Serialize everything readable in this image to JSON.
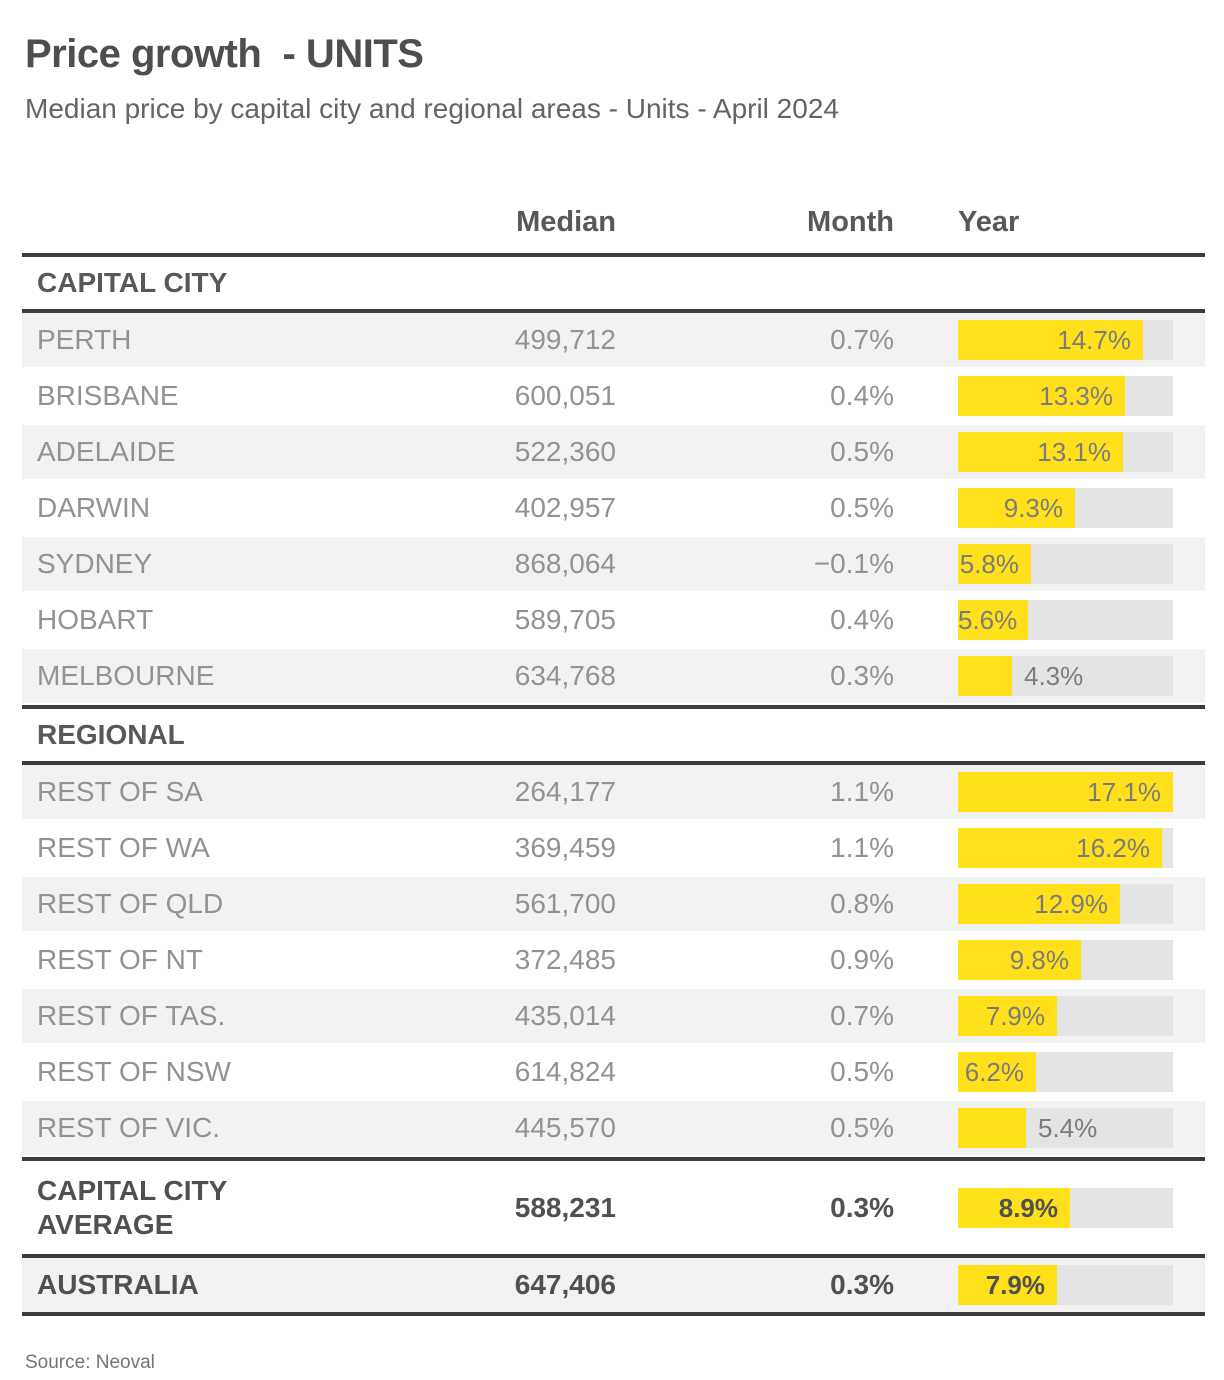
{
  "header": {
    "title": "Price growth  - UNITS",
    "subtitle": "Median price by capital city and regional areas - Units - April 2024"
  },
  "columns": {
    "median": "Median",
    "month": "Month",
    "year": "Year"
  },
  "sections": [
    {
      "label": "CAPITAL CITY",
      "rows": [
        {
          "name": "PERTH",
          "median": "499,712",
          "month": "0.7%",
          "year": 14.7,
          "year_label": "14.7%"
        },
        {
          "name": "BRISBANE",
          "median": "600,051",
          "month": "0.4%",
          "year": 13.3,
          "year_label": "13.3%"
        },
        {
          "name": "ADELAIDE",
          "median": "522,360",
          "month": "0.5%",
          "year": 13.1,
          "year_label": "13.1%"
        },
        {
          "name": "DARWIN",
          "median": "402,957",
          "month": "0.5%",
          "year": 9.3,
          "year_label": "9.3%"
        },
        {
          "name": "SYDNEY",
          "median": "868,064",
          "month": "−0.1%",
          "year": 5.8,
          "year_label": "5.8%"
        },
        {
          "name": "HOBART",
          "median": "589,705",
          "month": "0.4%",
          "year": 5.6,
          "year_label": "5.6%"
        },
        {
          "name": "MELBOURNE",
          "median": "634,768",
          "month": "0.3%",
          "year": 4.3,
          "year_label": "4.3%"
        }
      ]
    },
    {
      "label": "REGIONAL",
      "rows": [
        {
          "name": "REST OF SA",
          "median": "264,177",
          "month": "1.1%",
          "year": 17.1,
          "year_label": "17.1%"
        },
        {
          "name": "REST OF WA",
          "median": "369,459",
          "month": "1.1%",
          "year": 16.2,
          "year_label": "16.2%"
        },
        {
          "name": "REST OF QLD",
          "median": "561,700",
          "month": "0.8%",
          "year": 12.9,
          "year_label": "12.9%"
        },
        {
          "name": "REST OF NT",
          "median": "372,485",
          "month": "0.9%",
          "year": 9.8,
          "year_label": "9.8%"
        },
        {
          "name": "REST OF TAS.",
          "median": "435,014",
          "month": "0.7%",
          "year": 7.9,
          "year_label": "7.9%"
        },
        {
          "name": "REST OF NSW",
          "median": "614,824",
          "month": "0.5%",
          "year": 6.2,
          "year_label": "6.2%"
        },
        {
          "name": "REST OF VIC.",
          "median": "445,570",
          "month": "0.5%",
          "year": 5.4,
          "year_label": "5.4%"
        }
      ]
    }
  ],
  "summary_rows": [
    {
      "name": "CAPITAL CITY\nAVERAGE",
      "median": "588,231",
      "month": "0.3%",
      "year": 8.9,
      "year_label": "8.9%"
    },
    {
      "name": "AUSTRALIA",
      "median": "647,406",
      "month": "0.3%",
      "year": 7.9,
      "year_label": "7.9%"
    }
  ],
  "footer": {
    "source": "Source: Neoval"
  },
  "colors": {
    "bar_fill": "#FFE01A",
    "bar_track": "#E4E4E4",
    "row_alt_bg": "#F2F2F3",
    "rule": "#3B3C3E",
    "heading_text": "#57585A",
    "row_text": "#919295"
  },
  "chart_data": {
    "type": "bar",
    "orientation": "horizontal",
    "title": "Price growth - UNITS",
    "subtitle": "Median price by capital city and regional areas - Units - April 2024",
    "value_unit": "annual growth %",
    "xlim": [
      0,
      17.1
    ],
    "grid": false,
    "legend": "none",
    "bar_color": "#FFE01A",
    "categories": [
      "PERTH",
      "BRISBANE",
      "ADELAIDE",
      "DARWIN",
      "SYDNEY",
      "HOBART",
      "MELBOURNE",
      "REST OF SA",
      "REST OF WA",
      "REST OF QLD",
      "REST OF NT",
      "REST OF TAS.",
      "REST OF NSW",
      "REST OF VIC.",
      "CAPITAL CITY AVERAGE",
      "AUSTRALIA"
    ],
    "values": [
      14.7,
      13.3,
      13.1,
      9.3,
      5.8,
      5.6,
      4.3,
      17.1,
      16.2,
      12.9,
      9.8,
      7.9,
      6.2,
      5.4,
      8.9,
      7.9
    ],
    "medians": [
      499712,
      600051,
      522360,
      402957,
      868064,
      589705,
      634768,
      264177,
      369459,
      561700,
      372485,
      435014,
      614824,
      445570,
      588231,
      647406
    ],
    "month_pct": [
      0.7,
      0.4,
      0.5,
      0.5,
      -0.1,
      0.4,
      0.3,
      1.1,
      1.1,
      0.8,
      0.9,
      0.7,
      0.5,
      0.5,
      0.3,
      0.3
    ]
  }
}
